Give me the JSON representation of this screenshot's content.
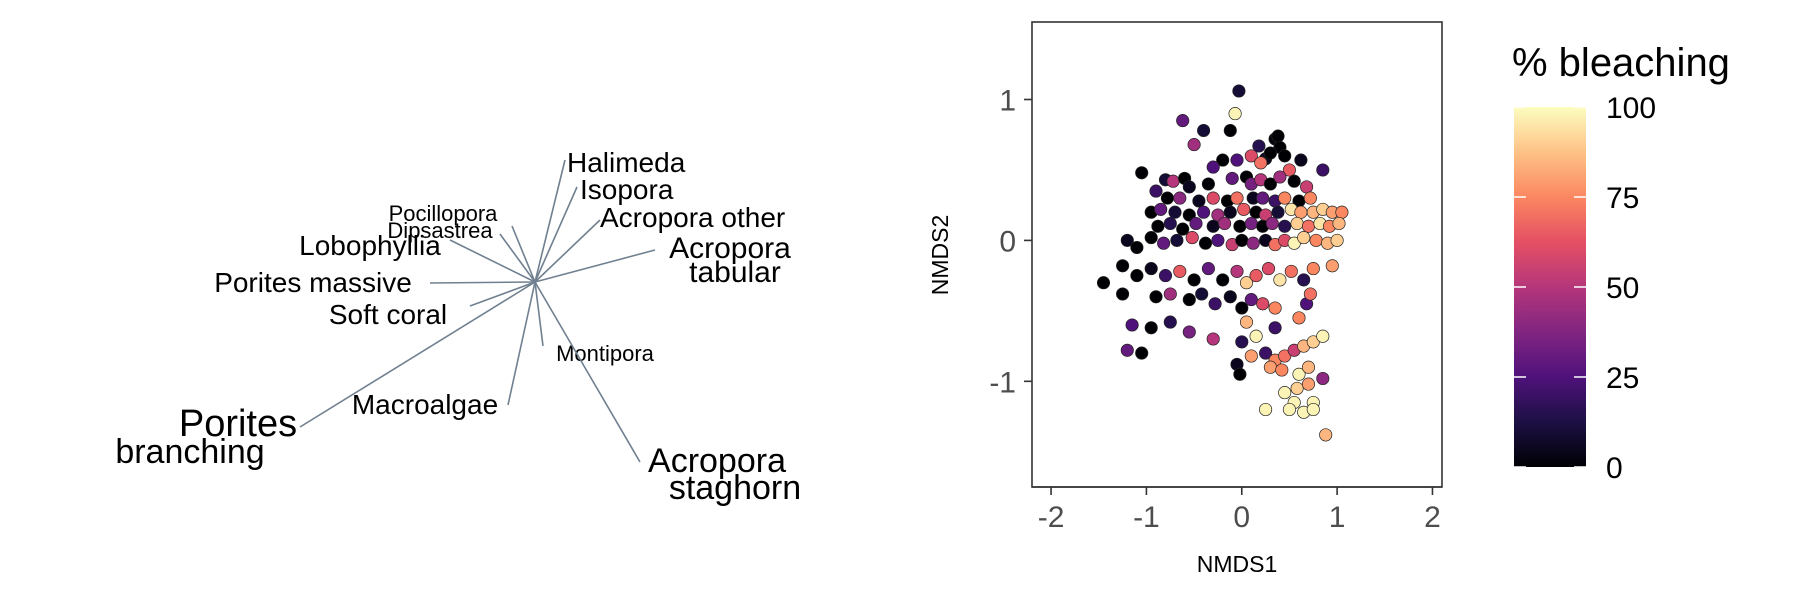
{
  "chart_data": [
    {
      "type": "biplot",
      "vector_color": "#708090",
      "species": [
        {
          "name": "Halimeda",
          "line": [
            0,
            0
          ],
          "label_lines": [
            "Halimeda"
          ],
          "size": "medium"
        },
        {
          "name": "Isopora",
          "line": [
            0,
            0
          ],
          "label_lines": [
            "Isopora"
          ],
          "size": "medium"
        },
        {
          "name": "Acropora other",
          "line": [
            0,
            0
          ],
          "label_lines": [
            "Acropora other"
          ],
          "size": "medium"
        },
        {
          "name": "Acropora tabular",
          "line": [
            0,
            0
          ],
          "label_lines": [
            "Acropora",
            "tabular"
          ],
          "size": "large"
        },
        {
          "name": "Pocillopora",
          "line": [
            0,
            0
          ],
          "label_lines": [
            "Pocillopora"
          ],
          "size": "small"
        },
        {
          "name": "Dipsastrea",
          "line": [
            0,
            0
          ],
          "label_lines": [
            "Dipsastrea"
          ],
          "size": "small"
        },
        {
          "name": "Lobophyllia",
          "line": [
            0,
            0
          ],
          "label_lines": [
            "Lobophyllia"
          ],
          "size": "medium"
        },
        {
          "name": "Porites massive",
          "line": [
            0,
            0
          ],
          "label_lines": [
            "Porites massive"
          ],
          "size": "medium"
        },
        {
          "name": "Soft coral",
          "line": [
            0,
            0
          ],
          "label_lines": [
            "Soft coral"
          ],
          "size": "medium"
        },
        {
          "name": "Montipora",
          "line": [
            0,
            0
          ],
          "label_lines": [
            "Montipora"
          ],
          "size": "small"
        },
        {
          "name": "Macroalgae",
          "line": [
            0,
            0
          ],
          "label_lines": [
            "Macroalgae"
          ],
          "size": "medium"
        },
        {
          "name": "Porites branching",
          "line": [
            0,
            0
          ],
          "label_lines": [
            "Porites",
            "branching"
          ],
          "size": "large"
        },
        {
          "name": "Acropora staghorn",
          "line": [
            0,
            0
          ],
          "label_lines": [
            "Acropora",
            "staghorn"
          ],
          "size": "large"
        }
      ]
    },
    {
      "type": "scatter",
      "xlabel": "NMDS1",
      "ylabel": "NMDS2",
      "xlim": [
        -2.2,
        2.1
      ],
      "ylim": [
        -1.75,
        1.55
      ],
      "xticks": [
        "-2",
        "-1",
        "0",
        "1",
        "2"
      ],
      "xtick_values": [
        -2,
        -1,
        0,
        1,
        2
      ],
      "yticks": [
        "-1",
        "0",
        "1"
      ],
      "ytick_values": [
        -1,
        0,
        1
      ],
      "grid": false,
      "color_variable": "% bleaching",
      "colorbar": {
        "title": "% bleaching",
        "range": [
          0,
          100
        ],
        "ticks": [
          "0",
          "25",
          "50",
          "75",
          "100"
        ],
        "tick_values": [
          0,
          25,
          50,
          75,
          100
        ],
        "colormap": "magma",
        "stops": [
          "#000004",
          "#1c1044",
          "#4f127b",
          "#812581",
          "#b5367a",
          "#e55064",
          "#fb8761",
          "#fec287",
          "#fcfdbf"
        ]
      },
      "points": [
        [
          -0.03,
          1.06,
          10
        ],
        [
          -0.07,
          0.9,
          98
        ],
        [
          -0.62,
          0.85,
          30
        ],
        [
          0.35,
          0.72,
          2
        ],
        [
          0.38,
          0.74,
          0
        ],
        [
          0.4,
          0.66,
          0
        ],
        [
          0.18,
          0.67,
          15
        ],
        [
          -0.12,
          0.78,
          0
        ],
        [
          -0.4,
          0.78,
          10
        ],
        [
          -0.5,
          0.68,
          45
        ],
        [
          0.25,
          0.58,
          5
        ],
        [
          0.3,
          0.62,
          0
        ],
        [
          0.45,
          0.6,
          0
        ],
        [
          0.62,
          0.57,
          5
        ],
        [
          0.1,
          0.6,
          60
        ],
        [
          0.2,
          0.55,
          70
        ],
        [
          -0.2,
          0.57,
          0
        ],
        [
          -0.3,
          0.52,
          25
        ],
        [
          -0.05,
          0.57,
          25
        ],
        [
          0.5,
          0.5,
          65
        ],
        [
          0.85,
          0.5,
          20
        ],
        [
          -1.05,
          0.48,
          0
        ],
        [
          -0.8,
          0.43,
          10
        ],
        [
          -0.72,
          0.42,
          50
        ],
        [
          -0.6,
          0.44,
          0
        ],
        [
          -0.55,
          0.38,
          5
        ],
        [
          -0.35,
          0.4,
          0
        ],
        [
          -0.1,
          0.44,
          30
        ],
        [
          0.05,
          0.45,
          0
        ],
        [
          0.1,
          0.4,
          35
        ],
        [
          0.2,
          0.43,
          50
        ],
        [
          0.3,
          0.4,
          0
        ],
        [
          0.4,
          0.45,
          45
        ],
        [
          0.55,
          0.42,
          0
        ],
        [
          0.68,
          0.38,
          55
        ],
        [
          -0.9,
          0.35,
          20
        ],
        [
          -0.78,
          0.3,
          0
        ],
        [
          -0.65,
          0.3,
          40
        ],
        [
          -0.45,
          0.28,
          5
        ],
        [
          -0.3,
          0.3,
          60
        ],
        [
          -0.15,
          0.28,
          0
        ],
        [
          -0.05,
          0.3,
          70
        ],
        [
          0.12,
          0.3,
          5
        ],
        [
          0.22,
          0.3,
          30
        ],
        [
          0.35,
          0.28,
          20
        ],
        [
          0.45,
          0.3,
          75
        ],
        [
          0.6,
          0.28,
          0
        ],
        [
          0.72,
          0.3,
          75
        ],
        [
          -0.95,
          0.2,
          0
        ],
        [
          -0.85,
          0.22,
          30
        ],
        [
          -0.7,
          0.2,
          10
        ],
        [
          -0.55,
          0.18,
          0
        ],
        [
          -0.4,
          0.2,
          25
        ],
        [
          -0.25,
          0.18,
          45
        ],
        [
          -0.12,
          0.2,
          5
        ],
        [
          0.02,
          0.22,
          65
        ],
        [
          0.15,
          0.2,
          0
        ],
        [
          0.25,
          0.18,
          55
        ],
        [
          0.38,
          0.2,
          10
        ],
        [
          0.52,
          0.22,
          95
        ],
        [
          0.62,
          0.2,
          80
        ],
        [
          0.75,
          0.2,
          85
        ],
        [
          0.85,
          0.22,
          90
        ],
        [
          0.95,
          0.2,
          80
        ],
        [
          1.05,
          0.2,
          75
        ],
        [
          -0.88,
          0.1,
          0
        ],
        [
          -0.75,
          0.12,
          15
        ],
        [
          -0.62,
          0.08,
          0
        ],
        [
          -0.48,
          0.12,
          30
        ],
        [
          -0.3,
          0.1,
          5
        ],
        [
          -0.18,
          0.12,
          45
        ],
        [
          -0.02,
          0.1,
          0
        ],
        [
          0.1,
          0.12,
          35
        ],
        [
          0.22,
          0.1,
          0
        ],
        [
          0.32,
          0.12,
          40
        ],
        [
          0.45,
          0.1,
          15
        ],
        [
          0.58,
          0.12,
          90
        ],
        [
          0.7,
          0.1,
          70
        ],
        [
          0.82,
          0.12,
          95
        ],
        [
          0.92,
          0.1,
          75
        ],
        [
          1.02,
          0.12,
          85
        ],
        [
          -1.2,
          0.0,
          5
        ],
        [
          -1.1,
          -0.05,
          0
        ],
        [
          -0.95,
          0.02,
          0
        ],
        [
          -0.82,
          -0.02,
          30
        ],
        [
          -0.68,
          0.0,
          10
        ],
        [
          -0.52,
          0.02,
          60
        ],
        [
          -0.38,
          -0.02,
          0
        ],
        [
          -0.25,
          0.0,
          25
        ],
        [
          -0.1,
          -0.03,
          55
        ],
        [
          0.0,
          0.0,
          0
        ],
        [
          0.12,
          -0.02,
          40
        ],
        [
          0.25,
          0.0,
          5
        ],
        [
          0.35,
          -0.03,
          70
        ],
        [
          0.45,
          0.0,
          60
        ],
        [
          0.55,
          -0.02,
          98
        ],
        [
          0.65,
          0.02,
          90
        ],
        [
          0.78,
          0.0,
          75
        ],
        [
          0.9,
          -0.02,
          85
        ],
        [
          1.0,
          0.0,
          90
        ],
        [
          -1.45,
          -0.3,
          0
        ],
        [
          -1.25,
          -0.18,
          0
        ],
        [
          -1.1,
          -0.25,
          0
        ],
        [
          -0.95,
          -0.2,
          5
        ],
        [
          -0.8,
          -0.25,
          20
        ],
        [
          -0.65,
          -0.22,
          65
        ],
        [
          -0.5,
          -0.28,
          0
        ],
        [
          -0.35,
          -0.2,
          30
        ],
        [
          -0.2,
          -0.28,
          0
        ],
        [
          -0.05,
          -0.22,
          50
        ],
        [
          0.05,
          -0.3,
          90
        ],
        [
          0.15,
          -0.25,
          65
        ],
        [
          0.28,
          -0.2,
          60
        ],
        [
          0.4,
          -0.28,
          95
        ],
        [
          0.52,
          -0.22,
          70
        ],
        [
          0.65,
          -0.28,
          15
        ],
        [
          0.75,
          -0.2,
          75
        ],
        [
          0.95,
          -0.18,
          80
        ],
        [
          -1.25,
          -0.38,
          0
        ],
        [
          -0.9,
          -0.4,
          0
        ],
        [
          -0.75,
          -0.38,
          45
        ],
        [
          -0.55,
          -0.42,
          0
        ],
        [
          -0.42,
          -0.38,
          10
        ],
        [
          -0.28,
          -0.45,
          20
        ],
        [
          -0.12,
          -0.4,
          5
        ],
        [
          0.0,
          -0.48,
          0
        ],
        [
          0.1,
          -0.42,
          30
        ],
        [
          0.22,
          -0.45,
          60
        ],
        [
          0.35,
          -0.48,
          75
        ],
        [
          0.68,
          -0.45,
          25
        ],
        [
          0.72,
          -0.38,
          70
        ],
        [
          -1.15,
          -0.6,
          25
        ],
        [
          -0.95,
          -0.62,
          0
        ],
        [
          -0.75,
          -0.58,
          15
        ],
        [
          -0.55,
          -0.65,
          35
        ],
        [
          -0.3,
          -0.7,
          50
        ],
        [
          0.05,
          -0.58,
          85
        ],
        [
          0.15,
          -0.68,
          98
        ],
        [
          0.35,
          -0.62,
          20
        ],
        [
          0.6,
          -0.55,
          75
        ],
        [
          -1.2,
          -0.78,
          30
        ],
        [
          -1.05,
          -0.8,
          0
        ],
        [
          0.0,
          -0.72,
          15
        ],
        [
          0.1,
          -0.82,
          80
        ],
        [
          0.25,
          -0.8,
          20
        ],
        [
          0.35,
          -0.85,
          75
        ],
        [
          0.45,
          -0.82,
          70
        ],
        [
          0.55,
          -0.78,
          55
        ],
        [
          0.65,
          -0.75,
          85
        ],
        [
          0.75,
          -0.72,
          90
        ],
        [
          0.85,
          -0.68,
          98
        ],
        [
          -0.05,
          -0.88,
          5
        ],
        [
          0.3,
          -0.9,
          80
        ],
        [
          0.42,
          -0.92,
          75
        ],
        [
          0.6,
          -0.95,
          98
        ],
        [
          0.7,
          -0.9,
          85
        ],
        [
          0.85,
          -0.98,
          40
        ],
        [
          -0.02,
          -0.95,
          0
        ],
        [
          0.58,
          -1.05,
          90
        ],
        [
          0.7,
          -1.02,
          80
        ],
        [
          0.45,
          -1.08,
          98
        ],
        [
          0.75,
          -1.15,
          98
        ],
        [
          0.55,
          -1.15,
          98
        ],
        [
          0.25,
          -1.2,
          98
        ],
        [
          0.5,
          -1.2,
          98
        ],
        [
          0.65,
          -1.22,
          98
        ],
        [
          0.75,
          -1.2,
          98
        ],
        [
          0.88,
          -1.38,
          85
        ]
      ]
    }
  ]
}
